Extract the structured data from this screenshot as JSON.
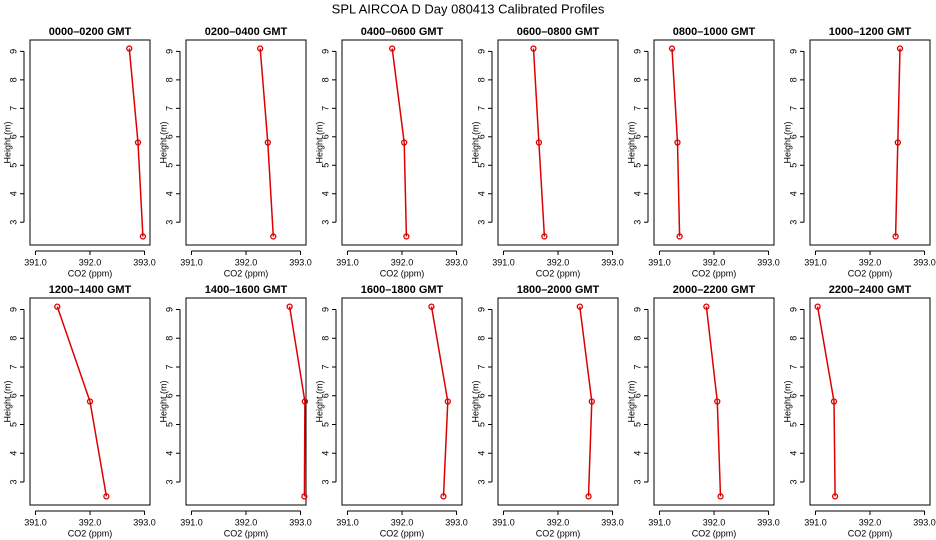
{
  "title": "SPL AIRCOA D  Day 080413  Calibrated Profiles",
  "chart_data": [
    {
      "type": "line",
      "title": "0000–0200 GMT",
      "xlabel": "CO2 (ppm)",
      "ylabel": "Height (m)",
      "color": "#dd0000",
      "x": [
        392.72,
        392.88,
        392.97
      ],
      "y": [
        9.1,
        5.8,
        2.5
      ],
      "xlim": [
        390.9,
        393.1
      ],
      "ylim": [
        2.2,
        9.4
      ],
      "xticks": [
        {
          "value": 391,
          "label": "391.0"
        },
        {
          "value": 392,
          "label": "392.0"
        },
        {
          "value": 393,
          "label": "393.0"
        }
      ],
      "yticks": [
        3,
        4,
        5,
        6,
        7,
        8,
        9
      ]
    },
    {
      "type": "line",
      "title": "0200–0400 GMT",
      "xlabel": "CO2 (ppm)",
      "ylabel": "Height (m)",
      "color": "#dd0000",
      "x": [
        392.26,
        392.4,
        392.5
      ],
      "y": [
        9.1,
        5.8,
        2.5
      ],
      "xlim": [
        390.9,
        393.1
      ],
      "ylim": [
        2.2,
        9.4
      ],
      "xticks": [
        {
          "value": 391,
          "label": "391.0"
        },
        {
          "value": 392,
          "label": "392.0"
        },
        {
          "value": 393,
          "label": "393.0"
        }
      ],
      "yticks": [
        3,
        4,
        5,
        6,
        7,
        8,
        9
      ]
    },
    {
      "type": "line",
      "title": "0400–0600 GMT",
      "xlabel": "CO2 (ppm)",
      "ylabel": "Height (m)",
      "color": "#dd0000",
      "x": [
        391.82,
        392.04,
        392.08
      ],
      "y": [
        9.1,
        5.8,
        2.5
      ],
      "xlim": [
        390.9,
        393.1
      ],
      "ylim": [
        2.2,
        9.4
      ],
      "xticks": [
        {
          "value": 391,
          "label": "391.0"
        },
        {
          "value": 392,
          "label": "392.0"
        },
        {
          "value": 393,
          "label": "393.0"
        }
      ],
      "yticks": [
        3,
        4,
        5,
        6,
        7,
        8,
        9
      ]
    },
    {
      "type": "line",
      "title": "0600–0800 GMT",
      "xlabel": "CO2 (ppm)",
      "ylabel": "Height (m)",
      "color": "#dd0000",
      "x": [
        391.55,
        391.65,
        391.75
      ],
      "y": [
        9.1,
        5.8,
        2.5
      ],
      "xlim": [
        390.9,
        393.1
      ],
      "ylim": [
        2.2,
        9.4
      ],
      "xticks": [
        {
          "value": 391,
          "label": "391.0"
        },
        {
          "value": 392,
          "label": "392.0"
        },
        {
          "value": 393,
          "label": "393.0"
        }
      ],
      "yticks": [
        3,
        4,
        5,
        6,
        7,
        8,
        9
      ]
    },
    {
      "type": "line",
      "title": "0800–1000 GMT",
      "xlabel": "CO2 (ppm)",
      "ylabel": "Height (m)",
      "color": "#dd0000",
      "x": [
        391.23,
        391.33,
        391.37
      ],
      "y": [
        9.1,
        5.8,
        2.5
      ],
      "xlim": [
        390.9,
        393.1
      ],
      "ylim": [
        2.2,
        9.4
      ],
      "xticks": [
        {
          "value": 391,
          "label": "391.0"
        },
        {
          "value": 392,
          "label": "392.0"
        },
        {
          "value": 393,
          "label": "393.0"
        }
      ],
      "yticks": [
        3,
        4,
        5,
        6,
        7,
        8,
        9
      ]
    },
    {
      "type": "line",
      "title": "1000–1200 GMT",
      "xlabel": "CO2 (ppm)",
      "ylabel": "Height (m)",
      "color": "#dd0000",
      "x": [
        392.55,
        392.51,
        392.47
      ],
      "y": [
        9.1,
        5.8,
        2.5
      ],
      "xlim": [
        390.9,
        393.1
      ],
      "ylim": [
        2.2,
        9.4
      ],
      "xticks": [
        {
          "value": 391,
          "label": "391.0"
        },
        {
          "value": 392,
          "label": "392.0"
        },
        {
          "value": 393,
          "label": "393.0"
        }
      ],
      "yticks": [
        3,
        4,
        5,
        6,
        7,
        8,
        9
      ]
    },
    {
      "type": "line",
      "title": "1200–1400 GMT",
      "xlabel": "CO2 (ppm)",
      "ylabel": "Height (m)",
      "color": "#dd0000",
      "x": [
        391.4,
        392.0,
        392.3
      ],
      "y": [
        9.1,
        5.8,
        2.5
      ],
      "xlim": [
        390.9,
        393.1
      ],
      "ylim": [
        2.2,
        9.4
      ],
      "xticks": [
        {
          "value": 391,
          "label": "391.0"
        },
        {
          "value": 392,
          "label": "392.0"
        },
        {
          "value": 393,
          "label": "393.0"
        }
      ],
      "yticks": [
        3,
        4,
        5,
        6,
        7,
        8,
        9
      ]
    },
    {
      "type": "line",
      "title": "1400–1600 GMT",
      "xlabel": "CO2 (ppm)",
      "ylabel": "Height (m)",
      "color": "#dd0000",
      "x": [
        392.8,
        393.08,
        393.07
      ],
      "y": [
        9.1,
        5.8,
        2.5
      ],
      "xlim": [
        390.9,
        393.1
      ],
      "ylim": [
        2.2,
        9.4
      ],
      "xticks": [
        {
          "value": 391,
          "label": "391.0"
        },
        {
          "value": 392,
          "label": "392.0"
        },
        {
          "value": 393,
          "label": "393.0"
        }
      ],
      "yticks": [
        3,
        4,
        5,
        6,
        7,
        8,
        9
      ]
    },
    {
      "type": "line",
      "title": "1600–1800 GMT",
      "xlabel": "CO2 (ppm)",
      "ylabel": "Height (m)",
      "color": "#dd0000",
      "x": [
        392.54,
        392.84,
        392.76
      ],
      "y": [
        9.1,
        5.8,
        2.5
      ],
      "xlim": [
        390.9,
        393.1
      ],
      "ylim": [
        2.2,
        9.4
      ],
      "xticks": [
        {
          "value": 391,
          "label": "391.0"
        },
        {
          "value": 392,
          "label": "392.0"
        },
        {
          "value": 393,
          "label": "393.0"
        }
      ],
      "yticks": [
        3,
        4,
        5,
        6,
        7,
        8,
        9
      ]
    },
    {
      "type": "line",
      "title": "1800–2000 GMT",
      "xlabel": "CO2 (ppm)",
      "ylabel": "Height (m)",
      "color": "#dd0000",
      "x": [
        392.4,
        392.62,
        392.56
      ],
      "y": [
        9.1,
        5.8,
        2.5
      ],
      "xlim": [
        390.9,
        393.1
      ],
      "ylim": [
        2.2,
        9.4
      ],
      "xticks": [
        {
          "value": 391,
          "label": "391.0"
        },
        {
          "value": 392,
          "label": "392.0"
        },
        {
          "value": 393,
          "label": "393.0"
        }
      ],
      "yticks": [
        3,
        4,
        5,
        6,
        7,
        8,
        9
      ]
    },
    {
      "type": "line",
      "title": "2000–2200 GMT",
      "xlabel": "CO2 (ppm)",
      "ylabel": "Height (m)",
      "color": "#dd0000",
      "x": [
        391.86,
        392.06,
        392.12
      ],
      "y": [
        9.1,
        5.8,
        2.5
      ],
      "xlim": [
        390.9,
        393.1
      ],
      "ylim": [
        2.2,
        9.4
      ],
      "xticks": [
        {
          "value": 391,
          "label": "391.0"
        },
        {
          "value": 392,
          "label": "392.0"
        },
        {
          "value": 393,
          "label": "393.0"
        }
      ],
      "yticks": [
        3,
        4,
        5,
        6,
        7,
        8,
        9
      ]
    },
    {
      "type": "line",
      "title": "2200–2400 GMT",
      "xlabel": "CO2 (ppm)",
      "ylabel": "Height (m)",
      "color": "#dd0000",
      "x": [
        391.04,
        391.34,
        391.36
      ],
      "y": [
        9.1,
        5.8,
        2.5
      ],
      "xlim": [
        390.9,
        393.1
      ],
      "ylim": [
        2.2,
        9.4
      ],
      "xticks": [
        {
          "value": 391,
          "label": "391.0"
        },
        {
          "value": 392,
          "label": "392.0"
        },
        {
          "value": 393,
          "label": "393.0"
        }
      ],
      "yticks": [
        3,
        4,
        5,
        6,
        7,
        8,
        9
      ]
    }
  ]
}
